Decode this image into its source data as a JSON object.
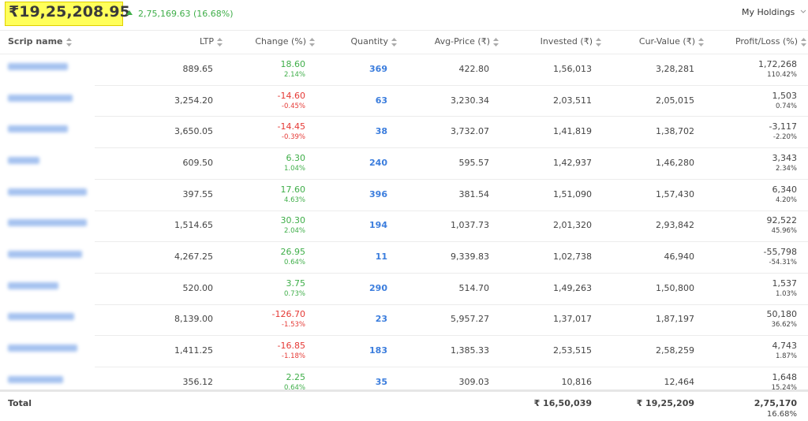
{
  "header": {
    "total_value": "₹19,25,208.95",
    "day_change": "2,75,169.63 (16.68%)",
    "view_selector": "My Holdings"
  },
  "table": {
    "columns": [
      "Scrip name",
      "LTP",
      "Change (%)",
      "Quantity",
      "Avg-Price (₹)",
      "Invested (₹)",
      "Cur-Value (₹)",
      "Profit/Loss (%)"
    ],
    "rows": [
      {
        "ltp": "889.65",
        "change": "18.60",
        "change_pct": "2.14%",
        "quantity": "369",
        "avg_price": "422.80",
        "invested": "1,56,013",
        "cur_value": "3,28,281",
        "pl": "1,72,268",
        "pl_pct": "110.42%"
      },
      {
        "ltp": "3,254.20",
        "change": "-14.60",
        "change_pct": "-0.45%",
        "quantity": "63",
        "avg_price": "3,230.34",
        "invested": "2,03,511",
        "cur_value": "2,05,015",
        "pl": "1,503",
        "pl_pct": "0.74%"
      },
      {
        "ltp": "3,650.05",
        "change": "-14.45",
        "change_pct": "-0.39%",
        "quantity": "38",
        "avg_price": "3,732.07",
        "invested": "1,41,819",
        "cur_value": "1,38,702",
        "pl": "-3,117",
        "pl_pct": "-2.20%"
      },
      {
        "ltp": "609.50",
        "change": "6.30",
        "change_pct": "1.04%",
        "quantity": "240",
        "avg_price": "595.57",
        "invested": "1,42,937",
        "cur_value": "1,46,280",
        "pl": "3,343",
        "pl_pct": "2.34%"
      },
      {
        "ltp": "397.55",
        "change": "17.60",
        "change_pct": "4.63%",
        "quantity": "396",
        "avg_price": "381.54",
        "invested": "1,51,090",
        "cur_value": "1,57,430",
        "pl": "6,340",
        "pl_pct": "4.20%"
      },
      {
        "ltp": "1,514.65",
        "change": "30.30",
        "change_pct": "2.04%",
        "quantity": "194",
        "avg_price": "1,037.73",
        "invested": "2,01,320",
        "cur_value": "2,93,842",
        "pl": "92,522",
        "pl_pct": "45.96%"
      },
      {
        "ltp": "4,267.25",
        "change": "26.95",
        "change_pct": "0.64%",
        "quantity": "11",
        "avg_price": "9,339.83",
        "invested": "1,02,738",
        "cur_value": "46,940",
        "pl": "-55,798",
        "pl_pct": "-54.31%"
      },
      {
        "ltp": "520.00",
        "change": "3.75",
        "change_pct": "0.73%",
        "quantity": "290",
        "avg_price": "514.70",
        "invested": "1,49,263",
        "cur_value": "1,50,800",
        "pl": "1,537",
        "pl_pct": "1.03%"
      },
      {
        "ltp": "8,139.00",
        "change": "-126.70",
        "change_pct": "-1.53%",
        "quantity": "23",
        "avg_price": "5,957.27",
        "invested": "1,37,017",
        "cur_value": "1,87,197",
        "pl": "50,180",
        "pl_pct": "36.62%"
      },
      {
        "ltp": "1,411.25",
        "change": "-16.85",
        "change_pct": "-1.18%",
        "quantity": "183",
        "avg_price": "1,385.33",
        "invested": "2,53,515",
        "cur_value": "2,58,259",
        "pl": "4,743",
        "pl_pct": "1.87%"
      },
      {
        "ltp": "356.12",
        "change": "2.25",
        "change_pct": "0.64%",
        "quantity": "35",
        "avg_price": "309.03",
        "invested": "10,816",
        "cur_value": "12,464",
        "pl": "1,648",
        "pl_pct": "15.24%"
      }
    ],
    "total": {
      "label": "Total",
      "invested": "₹ 16,50,039",
      "cur_value": "₹ 19,25,209",
      "pl": "2,75,170",
      "pl_pct": "16.68%"
    }
  }
}
